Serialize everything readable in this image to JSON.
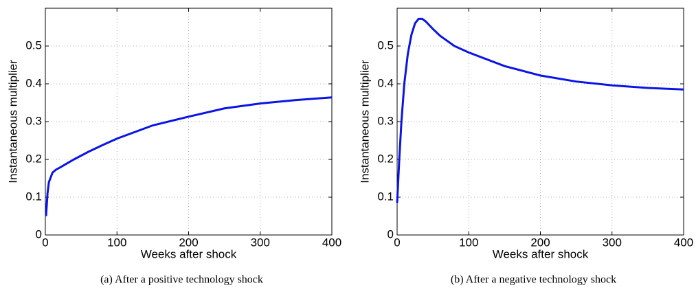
{
  "chart_data": [
    {
      "type": "line",
      "caption": "(a)  After a positive technology shock",
      "xlabel": "Weeks after shock",
      "ylabel": "Instantaneous multiplier",
      "color": "#0a14e6",
      "x": [
        1,
        3,
        5,
        10,
        15,
        20,
        40,
        60,
        80,
        100,
        150,
        200,
        250,
        300,
        350,
        400
      ],
      "values": [
        0.05,
        0.11,
        0.14,
        0.165,
        0.173,
        0.178,
        0.2,
        0.22,
        0.238,
        0.255,
        0.29,
        0.313,
        0.335,
        0.348,
        0.357,
        0.364
      ],
      "xlim": [
        0,
        400
      ],
      "xticks": [
        0,
        100,
        200,
        300,
        400
      ],
      "ylim": [
        0,
        0.6
      ],
      "yticks": [
        0,
        0.1,
        0.2,
        0.3,
        0.4,
        0.5
      ],
      "grid": true
    },
    {
      "type": "line",
      "caption": "(b)  After a negative technology shock",
      "xlabel": "Weeks after shock",
      "ylabel": "Instantaneous multiplier",
      "color": "#0a14e6",
      "x": [
        0,
        3,
        6,
        10,
        15,
        20,
        25,
        30,
        35,
        40,
        50,
        60,
        80,
        100,
        150,
        200,
        250,
        300,
        350,
        400
      ],
      "values": [
        0.085,
        0.2,
        0.3,
        0.4,
        0.48,
        0.53,
        0.56,
        0.572,
        0.572,
        0.565,
        0.545,
        0.527,
        0.5,
        0.483,
        0.447,
        0.422,
        0.406,
        0.396,
        0.389,
        0.385
      ],
      "xlim": [
        0,
        400
      ],
      "xticks": [
        0,
        100,
        200,
        300,
        400
      ],
      "ylim": [
        0,
        0.6
      ],
      "yticks": [
        0,
        0.1,
        0.2,
        0.3,
        0.4,
        0.5
      ],
      "grid": true
    }
  ]
}
